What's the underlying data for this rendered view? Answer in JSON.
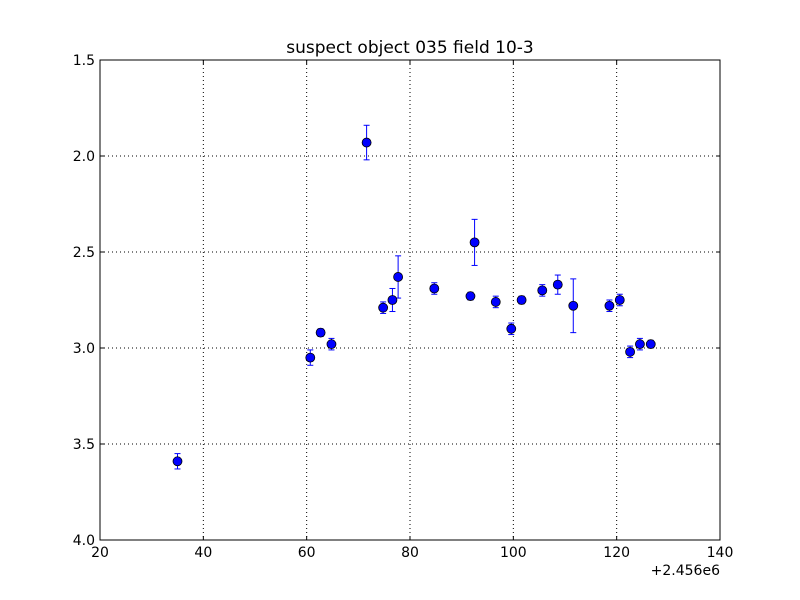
{
  "chart_data": {
    "type": "scatter",
    "title": "suspect object 035 field 10-3",
    "xlabel": "",
    "ylabel": "",
    "x_offset_label": "+2.456e6",
    "xlim": [
      20,
      140
    ],
    "ylim": [
      4.0,
      1.5
    ],
    "y_inverted": true,
    "grid": true,
    "x_ticks": [
      20,
      40,
      60,
      80,
      100,
      120,
      140
    ],
    "x_tick_labels": [
      "20",
      "40",
      "60",
      "80",
      "100",
      "120",
      "140"
    ],
    "y_ticks": [
      1.5,
      2.0,
      2.5,
      3.0,
      3.5,
      4.0
    ],
    "y_tick_labels": [
      "1.5",
      "2.0",
      "2.5",
      "3.0",
      "3.5",
      "4.0"
    ],
    "marker_color": "#0000ff",
    "series": [
      {
        "points": [
          {
            "x": 35.0,
            "y": 3.59,
            "err": 0.04
          },
          {
            "x": 60.7,
            "y": 3.05,
            "err": 0.04
          },
          {
            "x": 62.7,
            "y": 2.92,
            "err": 0.02
          },
          {
            "x": 64.8,
            "y": 2.98,
            "err": 0.03
          },
          {
            "x": 71.6,
            "y": 1.93,
            "err": 0.09
          },
          {
            "x": 74.8,
            "y": 2.79,
            "err": 0.03
          },
          {
            "x": 76.6,
            "y": 2.75,
            "err": 0.06
          },
          {
            "x": 77.7,
            "y": 2.63,
            "err": 0.11
          },
          {
            "x": 84.7,
            "y": 2.69,
            "err": 0.03
          },
          {
            "x": 91.7,
            "y": 2.73,
            "err": 0.02
          },
          {
            "x": 92.5,
            "y": 2.45,
            "err": 0.12
          },
          {
            "x": 96.6,
            "y": 2.76,
            "err": 0.03
          },
          {
            "x": 99.6,
            "y": 2.9,
            "err": 0.03
          },
          {
            "x": 101.6,
            "y": 2.75,
            "err": 0.02
          },
          {
            "x": 105.6,
            "y": 2.7,
            "err": 0.03
          },
          {
            "x": 108.6,
            "y": 2.67,
            "err": 0.05
          },
          {
            "x": 111.6,
            "y": 2.78,
            "err": 0.14
          },
          {
            "x": 118.6,
            "y": 2.78,
            "err": 0.03
          },
          {
            "x": 120.6,
            "y": 2.75,
            "err": 0.03
          },
          {
            "x": 122.6,
            "y": 3.02,
            "err": 0.03
          },
          {
            "x": 124.5,
            "y": 2.98,
            "err": 0.03
          },
          {
            "x": 126.6,
            "y": 2.98,
            "err": 0.02
          }
        ]
      }
    ]
  }
}
